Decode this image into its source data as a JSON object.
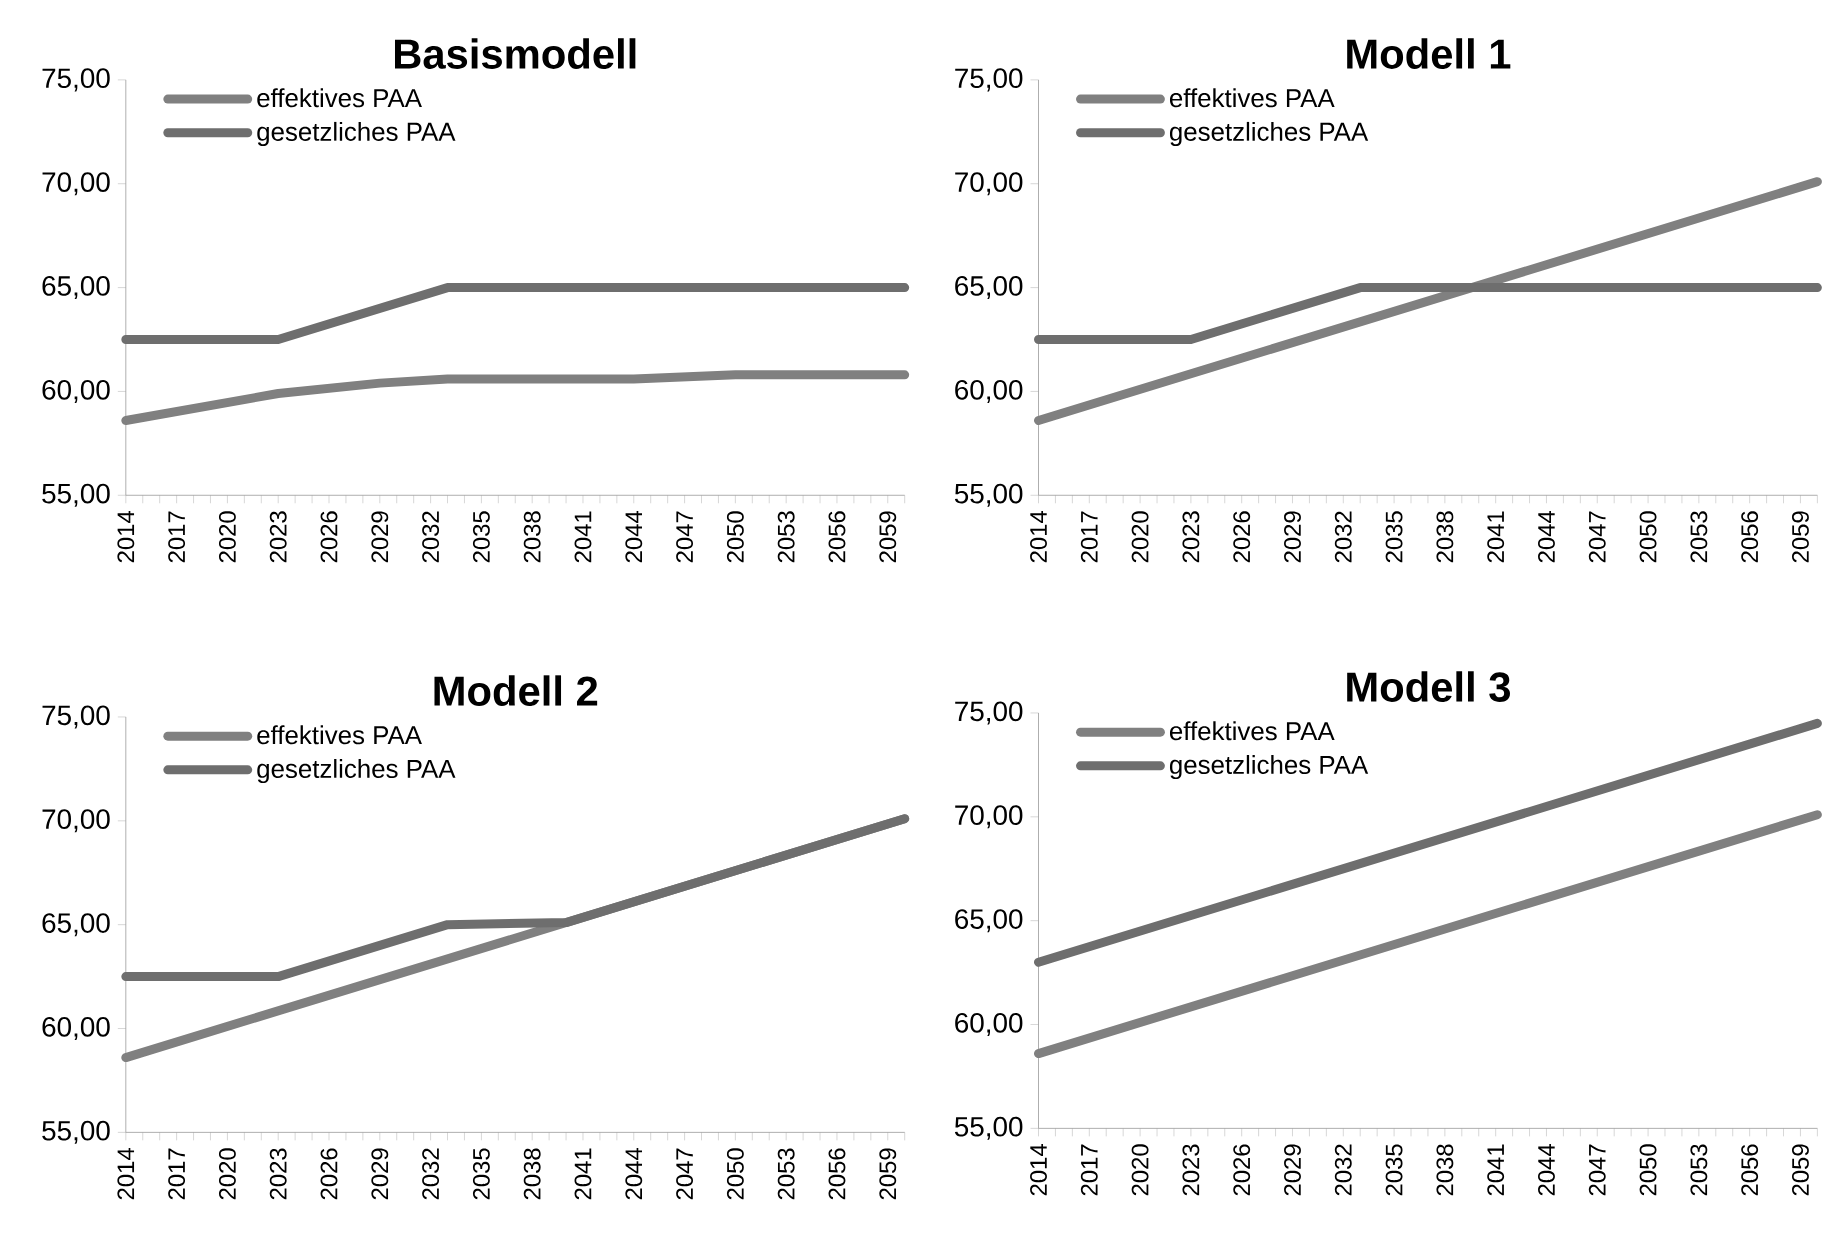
{
  "chart_data": [
    {
      "type": "line",
      "title": "Basismodell",
      "legend": "top left",
      "marker": "none",
      "xlim": [
        2014,
        2060
      ],
      "ylim": [
        55,
        75
      ],
      "yticks": [
        {
          "value": 55,
          "label": "55,00"
        },
        {
          "value": 60,
          "label": "60,00"
        },
        {
          "value": 65,
          "label": "65,00"
        },
        {
          "value": 70,
          "label": "70,00"
        },
        {
          "value": 75,
          "label": "75,00"
        }
      ],
      "xticks": [
        2014,
        {
          "value": 2015,
          "label": null
        },
        {
          "value": 2016,
          "label": null
        },
        2017,
        {
          "value": 2018,
          "label": null
        },
        {
          "value": 2019,
          "label": null
        },
        2020,
        {
          "value": 2021,
          "label": null
        },
        {
          "value": 2022,
          "label": null
        },
        2023,
        {
          "value": 2024,
          "label": null
        },
        {
          "value": 2025,
          "label": null
        },
        2026,
        {
          "value": 2027,
          "label": null
        },
        {
          "value": 2028,
          "label": null
        },
        2029,
        {
          "value": 2030,
          "label": null
        },
        {
          "value": 2031,
          "label": null
        },
        2032,
        {
          "value": 2033,
          "label": null
        },
        {
          "value": 2034,
          "label": null
        },
        2035,
        {
          "value": 2036,
          "label": null
        },
        {
          "value": 2037,
          "label": null
        },
        2038,
        {
          "value": 2039,
          "label": null
        },
        {
          "value": 2040,
          "label": null
        },
        2041,
        {
          "value": 2042,
          "label": null
        },
        {
          "value": 2043,
          "label": null
        },
        2044,
        {
          "value": 2045,
          "label": null
        },
        {
          "value": 2046,
          "label": null
        },
        2047,
        {
          "value": 2048,
          "label": null
        },
        {
          "value": 2049,
          "label": null
        },
        2050,
        {
          "value": 2051,
          "label": null
        },
        {
          "value": 2052,
          "label": null
        },
        2053,
        {
          "value": 2054,
          "label": null
        },
        {
          "value": 2055,
          "label": null
        },
        2056,
        {
          "value": 2057,
          "label": null
        },
        {
          "value": 2058,
          "label": null
        },
        2059,
        {
          "value": 2060,
          "label": null
        }
      ],
      "series": [
        {
          "name": "effektives PAA",
          "color": "#808080",
          "x": [
            2014,
            2023,
            2029,
            2033,
            2044,
            2050,
            2060
          ],
          "values": [
            58.6,
            59.9,
            60.4,
            60.6,
            60.6,
            60.8,
            60.8
          ]
        },
        {
          "name": "gesetzliches PAA",
          "color": "#6e6e6e",
          "x": [
            2014,
            2023,
            2033,
            2060
          ],
          "values": [
            62.5,
            62.5,
            65.0,
            65.0
          ]
        }
      ]
    },
    {
      "type": "line",
      "title": "Modell 1",
      "legend": "top left",
      "marker": "none",
      "xlim": [
        2014,
        2060
      ],
      "ylim": [
        55,
        75
      ],
      "yticks": [
        {
          "value": 55,
          "label": "55,00"
        },
        {
          "value": 60,
          "label": "60,00"
        },
        {
          "value": 65,
          "label": "65,00"
        },
        {
          "value": 70,
          "label": "70,00"
        },
        {
          "value": 75,
          "label": "75,00"
        }
      ],
      "xticks": [
        2014,
        {
          "value": 2015,
          "label": null
        },
        {
          "value": 2016,
          "label": null
        },
        2017,
        {
          "value": 2018,
          "label": null
        },
        {
          "value": 2019,
          "label": null
        },
        2020,
        {
          "value": 2021,
          "label": null
        },
        {
          "value": 2022,
          "label": null
        },
        2023,
        {
          "value": 2024,
          "label": null
        },
        {
          "value": 2025,
          "label": null
        },
        2026,
        {
          "value": 2027,
          "label": null
        },
        {
          "value": 2028,
          "label": null
        },
        2029,
        {
          "value": 2030,
          "label": null
        },
        {
          "value": 2031,
          "label": null
        },
        2032,
        {
          "value": 2033,
          "label": null
        },
        {
          "value": 2034,
          "label": null
        },
        2035,
        {
          "value": 2036,
          "label": null
        },
        {
          "value": 2037,
          "label": null
        },
        2038,
        {
          "value": 2039,
          "label": null
        },
        {
          "value": 2040,
          "label": null
        },
        2041,
        {
          "value": 2042,
          "label": null
        },
        {
          "value": 2043,
          "label": null
        },
        2044,
        {
          "value": 2045,
          "label": null
        },
        {
          "value": 2046,
          "label": null
        },
        2047,
        {
          "value": 2048,
          "label": null
        },
        {
          "value": 2049,
          "label": null
        },
        2050,
        {
          "value": 2051,
          "label": null
        },
        {
          "value": 2052,
          "label": null
        },
        2053,
        {
          "value": 2054,
          "label": null
        },
        {
          "value": 2055,
          "label": null
        },
        2056,
        {
          "value": 2057,
          "label": null
        },
        {
          "value": 2058,
          "label": null
        },
        2059,
        {
          "value": 2060,
          "label": null
        }
      ],
      "series": [
        {
          "name": "effektives PAA",
          "color": "#808080",
          "x": [
            2014,
            2060
          ],
          "values": [
            58.6,
            70.1
          ]
        },
        {
          "name": "gesetzliches PAA",
          "color": "#6e6e6e",
          "x": [
            2014,
            2023,
            2033,
            2060
          ],
          "values": [
            62.5,
            62.5,
            65.0,
            65.0
          ]
        }
      ]
    },
    {
      "type": "line",
      "title": "Modell 2",
      "legend": "top left",
      "marker": "none",
      "xlim": [
        2014,
        2060
      ],
      "ylim": [
        55,
        75
      ],
      "yticks": [
        {
          "value": 55,
          "label": "55,00"
        },
        {
          "value": 60,
          "label": "60,00"
        },
        {
          "value": 65,
          "label": "65,00"
        },
        {
          "value": 70,
          "label": "70,00"
        },
        {
          "value": 75,
          "label": "75,00"
        }
      ],
      "xticks": [
        2014,
        {
          "value": 2015,
          "label": null
        },
        {
          "value": 2016,
          "label": null
        },
        2017,
        {
          "value": 2018,
          "label": null
        },
        {
          "value": 2019,
          "label": null
        },
        2020,
        {
          "value": 2021,
          "label": null
        },
        {
          "value": 2022,
          "label": null
        },
        2023,
        {
          "value": 2024,
          "label": null
        },
        {
          "value": 2025,
          "label": null
        },
        2026,
        {
          "value": 2027,
          "label": null
        },
        {
          "value": 2028,
          "label": null
        },
        2029,
        {
          "value": 2030,
          "label": null
        },
        {
          "value": 2031,
          "label": null
        },
        2032,
        {
          "value": 2033,
          "label": null
        },
        {
          "value": 2034,
          "label": null
        },
        2035,
        {
          "value": 2036,
          "label": null
        },
        {
          "value": 2037,
          "label": null
        },
        2038,
        {
          "value": 2039,
          "label": null
        },
        {
          "value": 2040,
          "label": null
        },
        2041,
        {
          "value": 2042,
          "label": null
        },
        {
          "value": 2043,
          "label": null
        },
        2044,
        {
          "value": 2045,
          "label": null
        },
        {
          "value": 2046,
          "label": null
        },
        2047,
        {
          "value": 2048,
          "label": null
        },
        {
          "value": 2049,
          "label": null
        },
        2050,
        {
          "value": 2051,
          "label": null
        },
        {
          "value": 2052,
          "label": null
        },
        2053,
        {
          "value": 2054,
          "label": null
        },
        {
          "value": 2055,
          "label": null
        },
        2056,
        {
          "value": 2057,
          "label": null
        },
        {
          "value": 2058,
          "label": null
        },
        2059,
        {
          "value": 2060,
          "label": null
        }
      ],
      "series": [
        {
          "name": "effektives PAA",
          "color": "#808080",
          "x": [
            2014,
            2060
          ],
          "values": [
            58.6,
            70.1
          ]
        },
        {
          "name": "gesetzliches PAA",
          "color": "#6e6e6e",
          "x": [
            2014,
            2023,
            2033,
            2040,
            2060
          ],
          "values": [
            62.5,
            62.5,
            65.0,
            65.1,
            70.1
          ]
        }
      ]
    },
    {
      "type": "line",
      "title": "Modell 3",
      "legend": "top left",
      "marker": "none",
      "xlim": [
        2014,
        2060
      ],
      "ylim": [
        55,
        75
      ],
      "yticks": [
        {
          "value": 55,
          "label": "55,00"
        },
        {
          "value": 60,
          "label": "60,00"
        },
        {
          "value": 65,
          "label": "65,00"
        },
        {
          "value": 70,
          "label": "70,00"
        },
        {
          "value": 75,
          "label": "75,00"
        }
      ],
      "xticks": [
        2014,
        {
          "value": 2015,
          "label": null
        },
        {
          "value": 2016,
          "label": null
        },
        2017,
        {
          "value": 2018,
          "label": null
        },
        {
          "value": 2019,
          "label": null
        },
        2020,
        {
          "value": 2021,
          "label": null
        },
        {
          "value": 2022,
          "label": null
        },
        2023,
        {
          "value": 2024,
          "label": null
        },
        {
          "value": 2025,
          "label": null
        },
        2026,
        {
          "value": 2027,
          "label": null
        },
        {
          "value": 2028,
          "label": null
        },
        2029,
        {
          "value": 2030,
          "label": null
        },
        {
          "value": 2031,
          "label": null
        },
        2032,
        {
          "value": 2033,
          "label": null
        },
        {
          "value": 2034,
          "label": null
        },
        2035,
        {
          "value": 2036,
          "label": null
        },
        {
          "value": 2037,
          "label": null
        },
        2038,
        {
          "value": 2039,
          "label": null
        },
        {
          "value": 2040,
          "label": null
        },
        2041,
        {
          "value": 2042,
          "label": null
        },
        {
          "value": 2043,
          "label": null
        },
        2044,
        {
          "value": 2045,
          "label": null
        },
        {
          "value": 2046,
          "label": null
        },
        2047,
        {
          "value": 2048,
          "label": null
        },
        {
          "value": 2049,
          "label": null
        },
        2050,
        {
          "value": 2051,
          "label": null
        },
        {
          "value": 2052,
          "label": null
        },
        2053,
        {
          "value": 2054,
          "label": null
        },
        {
          "value": 2055,
          "label": null
        },
        2056,
        {
          "value": 2057,
          "label": null
        },
        {
          "value": 2058,
          "label": null
        },
        2059,
        {
          "value": 2060,
          "label": null
        }
      ],
      "series": [
        {
          "name": "effektives PAA",
          "color": "#808080",
          "x": [
            2014,
            2060
          ],
          "values": [
            58.6,
            70.1
          ]
        },
        {
          "name": "gesetzliches PAA",
          "color": "#6e6e6e",
          "x": [
            2014,
            2060
          ],
          "values": [
            63.0,
            74.5
          ]
        }
      ]
    }
  ]
}
